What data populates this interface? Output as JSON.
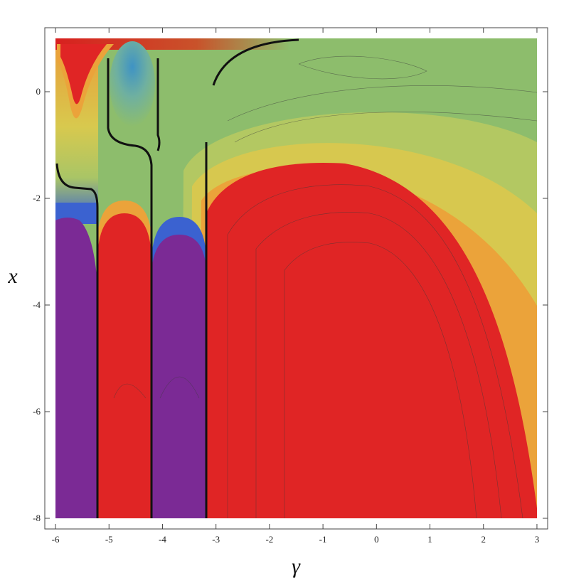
{
  "chart_data": {
    "type": "contour",
    "x_label": "γ",
    "y_label": "x",
    "xlim": [
      -6.2,
      3.2
    ],
    "ylim": [
      -8.2,
      1.2
    ],
    "xticks": [
      -6,
      -5,
      -4,
      -3,
      -2,
      -1,
      0,
      1,
      2,
      3
    ],
    "yticks": [
      -8,
      -6,
      -4,
      -2,
      0
    ]
  }
}
